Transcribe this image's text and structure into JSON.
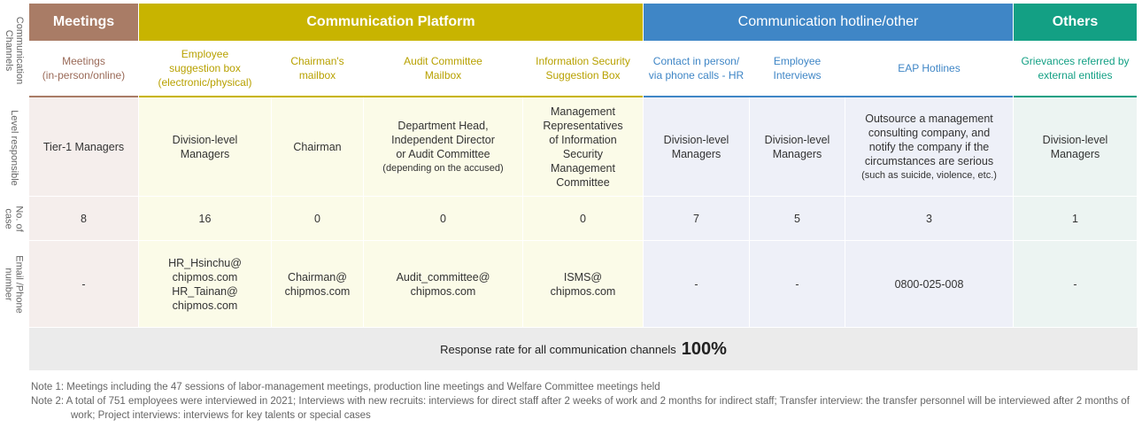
{
  "row_labels": {
    "channels": "Communication\nChannels",
    "level": "Level responsible",
    "cases": "No. of\ncase",
    "contact": "Email /Phone\nnumber"
  },
  "groups": {
    "meetings": {
      "label": "Meetings",
      "color": "#a97c66"
    },
    "platform": {
      "label": "Communication Platform",
      "color": "#c8b400"
    },
    "hotline": {
      "label": "Communication hotline/other",
      "color": "#3f86c6"
    },
    "others": {
      "label": "Others",
      "color": "#13a084"
    }
  },
  "channels": [
    {
      "name": "Meetings\n(in-person/online)",
      "level": "Tier-1 Managers",
      "cases": "8",
      "contact": "-"
    },
    {
      "name": "Employee\nsuggestion box\n(electronic/physical)",
      "level": "Division-level\nManagers",
      "cases": "16",
      "contact": "HR_Hsinchu@\nchipmos.com\nHR_Tainan@\nchipmos.com"
    },
    {
      "name": "Chairman's\nmailbox",
      "level": "Chairman",
      "cases": "0",
      "contact": "Chairman@\nchipmos.com"
    },
    {
      "name": "Audit Committee\nMailbox",
      "level": "Department Head,\nIndependent Director\nor Audit Committee",
      "level_note": "(depending on the accused)",
      "cases": "0",
      "contact": "Audit_committee@\nchipmos.com"
    },
    {
      "name": "Information Security\nSuggestion Box",
      "level": "Management\nRepresentatives\nof Information\nSecurity\nManagement\nCommittee",
      "cases": "0",
      "contact": "ISMS@\nchipmos.com"
    },
    {
      "name": "Contact in person/\nvia phone calls - HR",
      "level": "Division-level\nManagers",
      "cases": "7",
      "contact": "-"
    },
    {
      "name": "Employee\nInterviews",
      "level": "Division-level\nManagers",
      "cases": "5",
      "contact": "-"
    },
    {
      "name": "EAP Hotlines",
      "level": "Outsource a management\nconsulting company, and\nnotify the company if the\ncircumstances are serious",
      "level_note": "(such as suicide, violence, etc.)",
      "cases": "3",
      "contact": "0800-025-008"
    },
    {
      "name": "Grievances referred by\nexternal entities",
      "level": "Division-level\nManagers",
      "cases": "1",
      "contact": "-"
    }
  ],
  "response": {
    "label": "Response rate for all communication channels",
    "value": "100%"
  },
  "notes": [
    "Note 1: Meetings including the 47 sessions of labor-management meetings, production line meetings and Welfare Committee meetings held",
    "Note 2: A total of 751 employees were interviewed in 2021; Interviews with new recruits: interviews for direct staff after 2 weeks of work and 2 months for indirect staff; Transfer interview: the transfer personnel will be interviewed after 2 months of work; Project interviews: interviews for  key talents or special cases"
  ]
}
